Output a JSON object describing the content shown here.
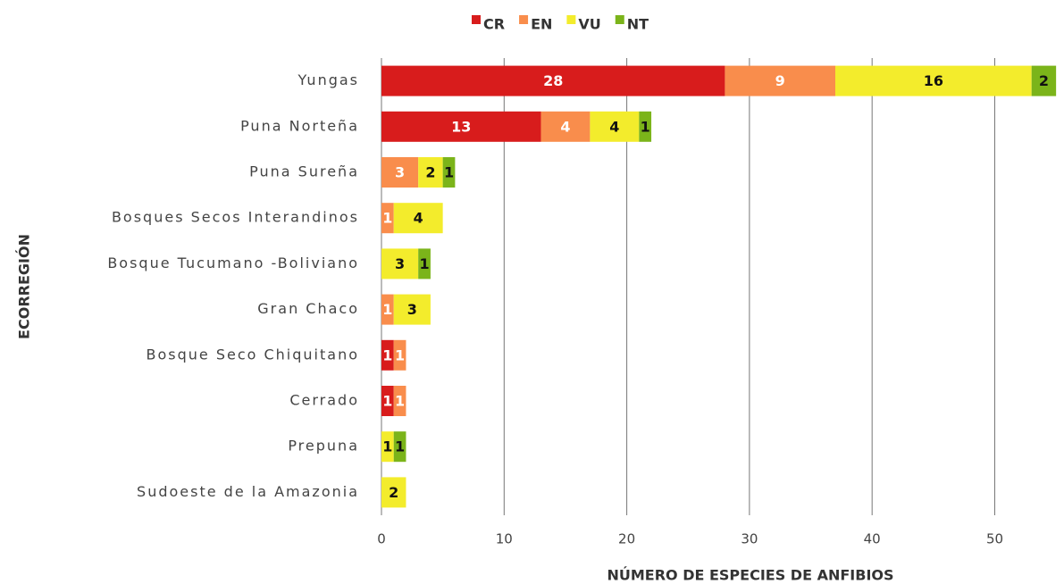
{
  "chart_data": {
    "type": "stacked-bar-horizontal",
    "x_label": "NÚMERO DE ESPECIES DE ANFIBIOS",
    "y_label": "ECORREGIÓN",
    "categories": [
      "Yungas",
      "Puna Norteña",
      "Puna Sureña",
      "Bosques Secos Interandinos",
      "Bosque Tucumano -Boliviano",
      "Gran Chaco",
      "Bosque Seco Chiquitano",
      "Cerrado",
      "Prepuna",
      "Sudoeste de la Amazonia"
    ],
    "series": [
      {
        "name": "CR",
        "color": "#d81c1c",
        "values": [
          28,
          13,
          null,
          null,
          null,
          null,
          1,
          1,
          null,
          null
        ]
      },
      {
        "name": "EN",
        "color": "#f98d4c",
        "values": [
          9,
          4,
          3,
          1,
          null,
          1,
          1,
          1,
          null,
          null
        ]
      },
      {
        "name": "VU",
        "color": "#f3ec2c",
        "values": [
          16,
          4,
          2,
          4,
          3,
          3,
          null,
          null,
          1,
          2
        ]
      },
      {
        "name": "NT",
        "color": "#7bb41a",
        "values": [
          2,
          1,
          1,
          null,
          1,
          null,
          null,
          null,
          1,
          null
        ]
      }
    ],
    "xlim": [
      0,
      55.5
    ],
    "xticks": [
      0,
      10,
      20,
      30,
      40,
      50
    ],
    "grid": true,
    "legend": "top"
  }
}
